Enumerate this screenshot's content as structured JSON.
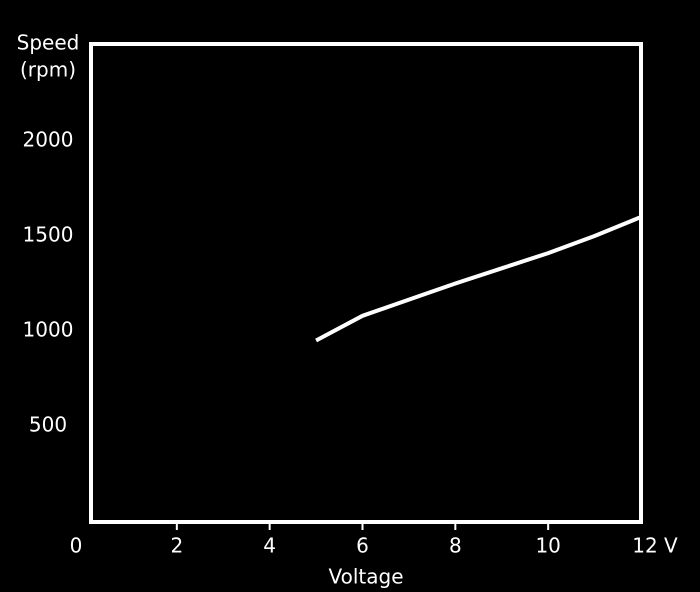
{
  "chart_data": {
    "type": "line",
    "y_label_lines": [
      "Speed",
      "(rpm)"
    ],
    "x_label": "Voltage",
    "x": [
      5,
      6,
      7,
      8,
      9,
      10,
      11,
      12
    ],
    "series": [
      {
        "color": "#ffffff",
        "values": [
          950,
          1080,
          1165,
          1250,
          1330,
          1410,
          1500,
          1600
        ]
      }
    ],
    "xlim": [
      0,
      12
    ],
    "ylim": [
      0,
      2500
    ],
    "xticks": [
      0,
      2,
      4,
      6,
      8,
      10,
      {
        "value": 12,
        "label": "12 V"
      }
    ],
    "yticks": [
      500,
      1000,
      1500,
      2000
    ],
    "grid": true
  }
}
